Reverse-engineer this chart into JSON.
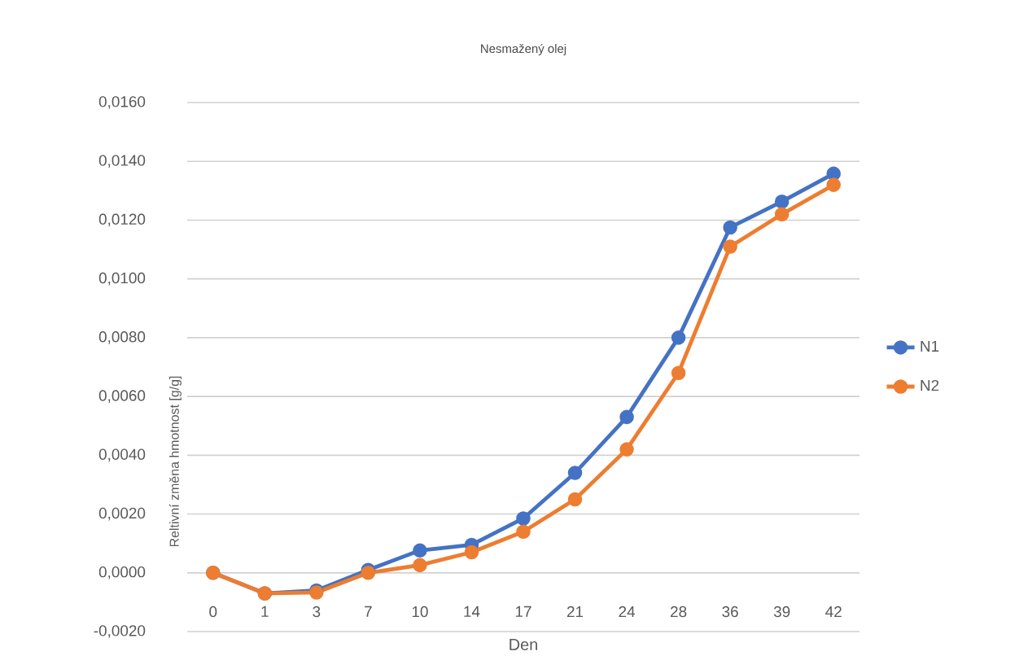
{
  "chart_data": {
    "type": "line",
    "title": "Nesmažený olej",
    "xlabel": "Den",
    "ylabel": "Reltivní změna hmotnost [g/g]",
    "categories": [
      "0",
      "1",
      "3",
      "7",
      "10",
      "14",
      "17",
      "21",
      "24",
      "28",
      "36",
      "39",
      "42"
    ],
    "series": [
      {
        "name": "N1",
        "color": "#4472c4",
        "values": [
          0,
          -0.0007,
          -0.0006,
          0.0001,
          0.00076,
          0.00095,
          0.00185,
          0.0034,
          0.0053,
          0.008,
          0.01175,
          0.01263,
          0.01358
        ]
      },
      {
        "name": "N2",
        "color": "#ed7d31",
        "values": [
          0,
          -0.0007,
          -0.00067,
          0,
          0.00026,
          0.0007,
          0.0014,
          0.0025,
          0.0042,
          0.0068,
          0.0111,
          0.0122,
          0.0132
        ]
      }
    ],
    "ylim": [
      -0.002,
      0.016
    ],
    "yticks": [
      {
        "value": -0.002,
        "label": "-0,0020"
      },
      {
        "value": 0,
        "label": "0,0000"
      },
      {
        "value": 0.002,
        "label": "0,0020"
      },
      {
        "value": 0.004,
        "label": "0,0040"
      },
      {
        "value": 0.006,
        "label": "0,0060"
      },
      {
        "value": 0.008,
        "label": "0,0080"
      },
      {
        "value": 0.01,
        "label": "0,0100"
      },
      {
        "value": 0.012,
        "label": "0,0120"
      },
      {
        "value": 0.014,
        "label": "0,0140"
      },
      {
        "value": 0.016,
        "label": "0,0160"
      }
    ],
    "grid": "y",
    "legend": "right",
    "marker": "circle",
    "line_style": "solid"
  }
}
